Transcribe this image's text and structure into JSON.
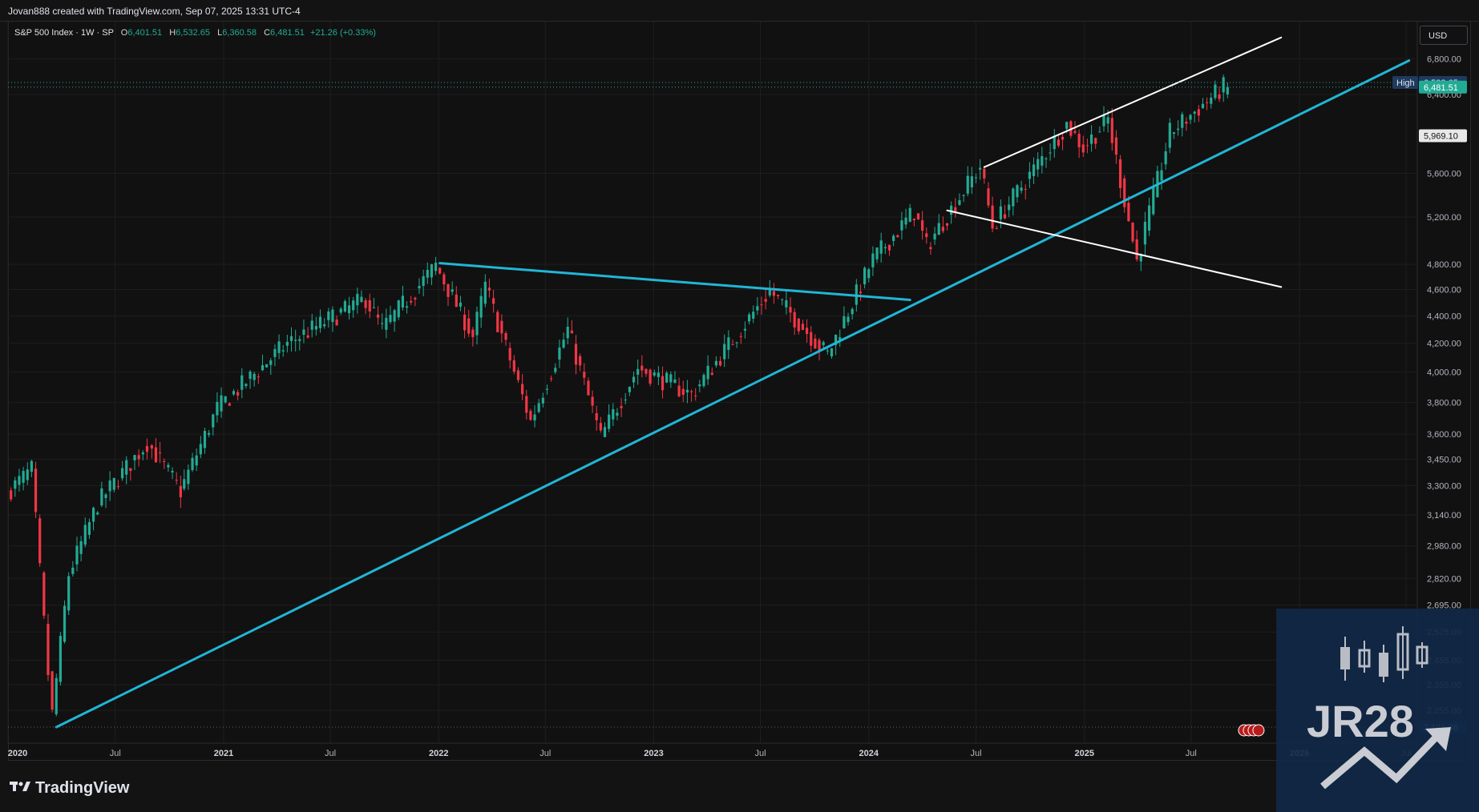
{
  "header": {
    "credit": "Jovan888 created with TradingView.com, Sep 07, 2025 13:31 UTC-4"
  },
  "legend": {
    "symbol": "S&P 500 Index · 1W · SP",
    "open_label": "O",
    "open": "6,401.51",
    "high_label": "H",
    "high": "6,532.65",
    "low_label": "L",
    "low": "6,360.58",
    "close_label": "C",
    "close": "6,481.51",
    "change": "+21.26 (+0.33%)"
  },
  "currency_button": "USD",
  "price_tags": {
    "high_label": "High",
    "high_value": "6,532.65",
    "last_value": "6,481.51",
    "marker_value": "5,969.10",
    "low_value": "2,191.86"
  },
  "brand": {
    "logo_text": "TradingView",
    "watermark": "JR28"
  },
  "colors": {
    "up": "#22ab94",
    "down": "#f23645",
    "trendline": "#21b6d6",
    "channel": "#ffffff",
    "background": "#111111"
  },
  "chart_data": {
    "type": "candlestick",
    "title": "S&P 500 Index · 1W · SP",
    "y_scale": "log",
    "y_ticks": [
      6800,
      6400,
      5969.1,
      5600,
      5200,
      4800,
      4600,
      4400,
      4200,
      4000,
      3800,
      3600,
      3450,
      3300,
      3140,
      2980,
      2820,
      2695,
      2575,
      2455,
      2355,
      2255,
      2191.86
    ],
    "y_tick_labels": [
      "6,800.00",
      "6,400.00",
      "5,969.10",
      "5,600.00",
      "5,200.00",
      "4,800.00",
      "4,600.00",
      "4,400.00",
      "4,200.00",
      "4,000.00",
      "3,800.00",
      "3,600.00",
      "3,450.00",
      "3,300.00",
      "3,140.00",
      "2,980.00",
      "2,820.00",
      "2,695.00",
      "2,575.00",
      "2,455.00",
      "2,355.00",
      "2,255.00",
      "2,191.86"
    ],
    "x_ticks": [
      "2020-01-01",
      "2020-07-01",
      "2021-01-01",
      "2021-07-01",
      "2022-01-01",
      "2022-07-01",
      "2023-01-01",
      "2023-07-01",
      "2024-01-01",
      "2024-07-01",
      "2025-01-01",
      "2025-07-01",
      "2026-01-01",
      "2026-07-01"
    ],
    "x_tick_labels": [
      "2020",
      "Jul",
      "2021",
      "Jul",
      "2022",
      "Jul",
      "2023",
      "Jul",
      "2024",
      "Jul",
      "2025",
      "Jul",
      "2026",
      "Jul"
    ],
    "x_range": [
      "2020-01-01",
      "2026-07-20"
    ],
    "anchors": [
      [
        "2020-01-06",
        3260
      ],
      [
        "2020-02-17",
        3390
      ],
      [
        "2020-03-16",
        2400
      ],
      [
        "2020-03-23",
        2240
      ],
      [
        "2020-04-20",
        2840
      ],
      [
        "2020-06-08",
        3200
      ],
      [
        "2020-09-01",
        3550
      ],
      [
        "2020-10-26",
        3270
      ],
      [
        "2020-12-28",
        3760
      ],
      [
        "2021-04-26",
        4200
      ],
      [
        "2021-09-06",
        4530
      ],
      [
        "2021-10-04",
        4300
      ],
      [
        "2022-01-03",
        4790
      ],
      [
        "2022-03-07",
        4250
      ],
      [
        "2022-03-28",
        4630
      ],
      [
        "2022-06-13",
        3680
      ],
      [
        "2022-08-15",
        4300
      ],
      [
        "2022-10-10",
        3580
      ],
      [
        "2022-12-12",
        4030
      ],
      [
        "2023-03-13",
        3850
      ],
      [
        "2023-07-24",
        4590
      ],
      [
        "2023-10-30",
        4120
      ],
      [
        "2024-01-15",
        4840
      ],
      [
        "2024-03-25",
        5250
      ],
      [
        "2024-04-15",
        4950
      ],
      [
        "2024-07-15",
        5670
      ],
      [
        "2024-08-05",
        5120
      ],
      [
        "2024-12-09",
        6090
      ],
      [
        "2025-01-06",
        5850
      ],
      [
        "2025-02-17",
        6140
      ],
      [
        "2025-04-07",
        4830
      ],
      [
        "2025-06-02",
        6000
      ],
      [
        "2025-09-01",
        6481.51
      ]
    ],
    "last_candle": {
      "open": 6401.51,
      "high": 6532.65,
      "low": 6360.58,
      "close": 6481.51
    },
    "lines": [
      {
        "name": "",
        "color": "trendline",
        "points": [
          [
            "2020-03-23",
            2191.86
          ],
          [
            "2026-07-06",
            6780
          ]
        ]
      },
      {
        "name": "",
        "color": "trendline",
        "points": [
          [
            "2022-01-03",
            4810
          ],
          [
            "2024-03-11",
            4520
          ]
        ]
      },
      {
        "name": "",
        "color": "channel",
        "points": [
          [
            "2024-07-15",
            5660
          ],
          [
            "2025-12-01",
            7050
          ]
        ]
      },
      {
        "name": "",
        "color": "channel",
        "points": [
          [
            "2024-05-13",
            5260
          ],
          [
            "2025-12-01",
            4620
          ]
        ]
      }
    ]
  }
}
